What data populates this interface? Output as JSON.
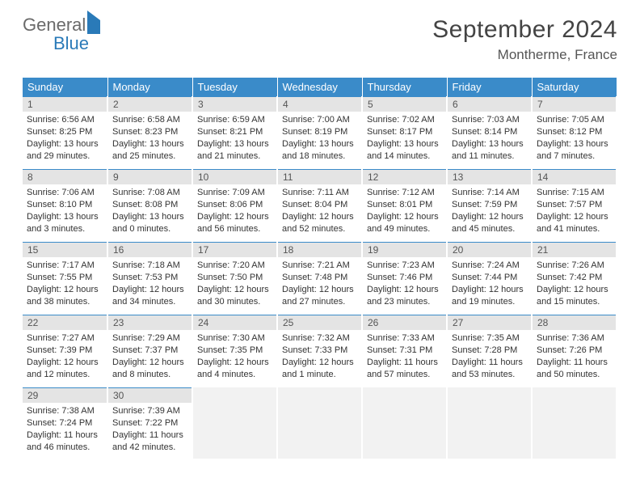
{
  "logo": {
    "word1": "General",
    "word2": "Blue"
  },
  "title": "September 2024",
  "location": "Montherme, France",
  "colors": {
    "header_bg": "#3a8bc9",
    "header_text": "#ffffff",
    "daynum_bg": "#e4e4e4",
    "cell_border_top": "#3a8bc9",
    "body_text": "#333333",
    "logo_gray": "#6a6a6a",
    "logo_blue": "#2a7ab8"
  },
  "day_headers": [
    "Sunday",
    "Monday",
    "Tuesday",
    "Wednesday",
    "Thursday",
    "Friday",
    "Saturday"
  ],
  "weeks": [
    [
      {
        "n": "1",
        "sr": "Sunrise: 6:56 AM",
        "ss": "Sunset: 8:25 PM",
        "dl": "Daylight: 13 hours and 29 minutes."
      },
      {
        "n": "2",
        "sr": "Sunrise: 6:58 AM",
        "ss": "Sunset: 8:23 PM",
        "dl": "Daylight: 13 hours and 25 minutes."
      },
      {
        "n": "3",
        "sr": "Sunrise: 6:59 AM",
        "ss": "Sunset: 8:21 PM",
        "dl": "Daylight: 13 hours and 21 minutes."
      },
      {
        "n": "4",
        "sr": "Sunrise: 7:00 AM",
        "ss": "Sunset: 8:19 PM",
        "dl": "Daylight: 13 hours and 18 minutes."
      },
      {
        "n": "5",
        "sr": "Sunrise: 7:02 AM",
        "ss": "Sunset: 8:17 PM",
        "dl": "Daylight: 13 hours and 14 minutes."
      },
      {
        "n": "6",
        "sr": "Sunrise: 7:03 AM",
        "ss": "Sunset: 8:14 PM",
        "dl": "Daylight: 13 hours and 11 minutes."
      },
      {
        "n": "7",
        "sr": "Sunrise: 7:05 AM",
        "ss": "Sunset: 8:12 PM",
        "dl": "Daylight: 13 hours and 7 minutes."
      }
    ],
    [
      {
        "n": "8",
        "sr": "Sunrise: 7:06 AM",
        "ss": "Sunset: 8:10 PM",
        "dl": "Daylight: 13 hours and 3 minutes."
      },
      {
        "n": "9",
        "sr": "Sunrise: 7:08 AM",
        "ss": "Sunset: 8:08 PM",
        "dl": "Daylight: 13 hours and 0 minutes."
      },
      {
        "n": "10",
        "sr": "Sunrise: 7:09 AM",
        "ss": "Sunset: 8:06 PM",
        "dl": "Daylight: 12 hours and 56 minutes."
      },
      {
        "n": "11",
        "sr": "Sunrise: 7:11 AM",
        "ss": "Sunset: 8:04 PM",
        "dl": "Daylight: 12 hours and 52 minutes."
      },
      {
        "n": "12",
        "sr": "Sunrise: 7:12 AM",
        "ss": "Sunset: 8:01 PM",
        "dl": "Daylight: 12 hours and 49 minutes."
      },
      {
        "n": "13",
        "sr": "Sunrise: 7:14 AM",
        "ss": "Sunset: 7:59 PM",
        "dl": "Daylight: 12 hours and 45 minutes."
      },
      {
        "n": "14",
        "sr": "Sunrise: 7:15 AM",
        "ss": "Sunset: 7:57 PM",
        "dl": "Daylight: 12 hours and 41 minutes."
      }
    ],
    [
      {
        "n": "15",
        "sr": "Sunrise: 7:17 AM",
        "ss": "Sunset: 7:55 PM",
        "dl": "Daylight: 12 hours and 38 minutes."
      },
      {
        "n": "16",
        "sr": "Sunrise: 7:18 AM",
        "ss": "Sunset: 7:53 PM",
        "dl": "Daylight: 12 hours and 34 minutes."
      },
      {
        "n": "17",
        "sr": "Sunrise: 7:20 AM",
        "ss": "Sunset: 7:50 PM",
        "dl": "Daylight: 12 hours and 30 minutes."
      },
      {
        "n": "18",
        "sr": "Sunrise: 7:21 AM",
        "ss": "Sunset: 7:48 PM",
        "dl": "Daylight: 12 hours and 27 minutes."
      },
      {
        "n": "19",
        "sr": "Sunrise: 7:23 AM",
        "ss": "Sunset: 7:46 PM",
        "dl": "Daylight: 12 hours and 23 minutes."
      },
      {
        "n": "20",
        "sr": "Sunrise: 7:24 AM",
        "ss": "Sunset: 7:44 PM",
        "dl": "Daylight: 12 hours and 19 minutes."
      },
      {
        "n": "21",
        "sr": "Sunrise: 7:26 AM",
        "ss": "Sunset: 7:42 PM",
        "dl": "Daylight: 12 hours and 15 minutes."
      }
    ],
    [
      {
        "n": "22",
        "sr": "Sunrise: 7:27 AM",
        "ss": "Sunset: 7:39 PM",
        "dl": "Daylight: 12 hours and 12 minutes."
      },
      {
        "n": "23",
        "sr": "Sunrise: 7:29 AM",
        "ss": "Sunset: 7:37 PM",
        "dl": "Daylight: 12 hours and 8 minutes."
      },
      {
        "n": "24",
        "sr": "Sunrise: 7:30 AM",
        "ss": "Sunset: 7:35 PM",
        "dl": "Daylight: 12 hours and 4 minutes."
      },
      {
        "n": "25",
        "sr": "Sunrise: 7:32 AM",
        "ss": "Sunset: 7:33 PM",
        "dl": "Daylight: 12 hours and 1 minute."
      },
      {
        "n": "26",
        "sr": "Sunrise: 7:33 AM",
        "ss": "Sunset: 7:31 PM",
        "dl": "Daylight: 11 hours and 57 minutes."
      },
      {
        "n": "27",
        "sr": "Sunrise: 7:35 AM",
        "ss": "Sunset: 7:28 PM",
        "dl": "Daylight: 11 hours and 53 minutes."
      },
      {
        "n": "28",
        "sr": "Sunrise: 7:36 AM",
        "ss": "Sunset: 7:26 PM",
        "dl": "Daylight: 11 hours and 50 minutes."
      }
    ],
    [
      {
        "n": "29",
        "sr": "Sunrise: 7:38 AM",
        "ss": "Sunset: 7:24 PM",
        "dl": "Daylight: 11 hours and 46 minutes."
      },
      {
        "n": "30",
        "sr": "Sunrise: 7:39 AM",
        "ss": "Sunset: 7:22 PM",
        "dl": "Daylight: 11 hours and 42 minutes."
      },
      {
        "empty": true
      },
      {
        "empty": true
      },
      {
        "empty": true
      },
      {
        "empty": true
      },
      {
        "empty": true
      }
    ]
  ]
}
